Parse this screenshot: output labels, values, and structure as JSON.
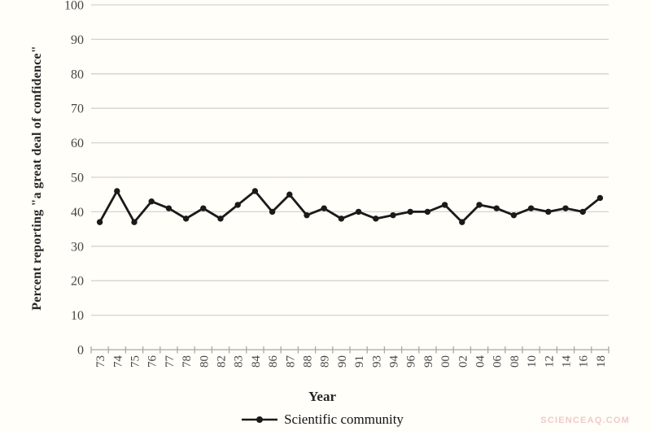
{
  "chart_data": {
    "type": "line",
    "title": "",
    "xlabel": "Year",
    "ylabel": "Percent reporting \"a great deal of confidence\"",
    "categories": [
      "73",
      "74",
      "75",
      "76",
      "77",
      "78",
      "80",
      "82",
      "83",
      "84",
      "86",
      "87",
      "88",
      "89",
      "90",
      "91",
      "93",
      "94",
      "96",
      "98",
      "00",
      "02",
      "04",
      "06",
      "08",
      "10",
      "12",
      "14",
      "16",
      "18"
    ],
    "series": [
      {
        "name": "Scientific community",
        "values": [
          37,
          46,
          37,
          43,
          41,
          38,
          41,
          38,
          42,
          46,
          40,
          45,
          39,
          41,
          38,
          40,
          38,
          39,
          40,
          40,
          42,
          37,
          42,
          41,
          39,
          41,
          40,
          41,
          40,
          44
        ]
      }
    ],
    "ylim": [
      0,
      100
    ],
    "ytick_step": 10,
    "grid": "horizontal",
    "legend_position": "bottom-center",
    "x_label_rotation": -90,
    "colors": {
      "line": "#1a1a1a",
      "marker": "#1a1a1a",
      "grid": "#d6d3cd",
      "axis": "#a8a8a8",
      "tick_text": "#454545",
      "background": "#fffef8"
    }
  },
  "watermark": {
    "text": "SCIENCEAQ.COM",
    "color": "#f0caca"
  }
}
